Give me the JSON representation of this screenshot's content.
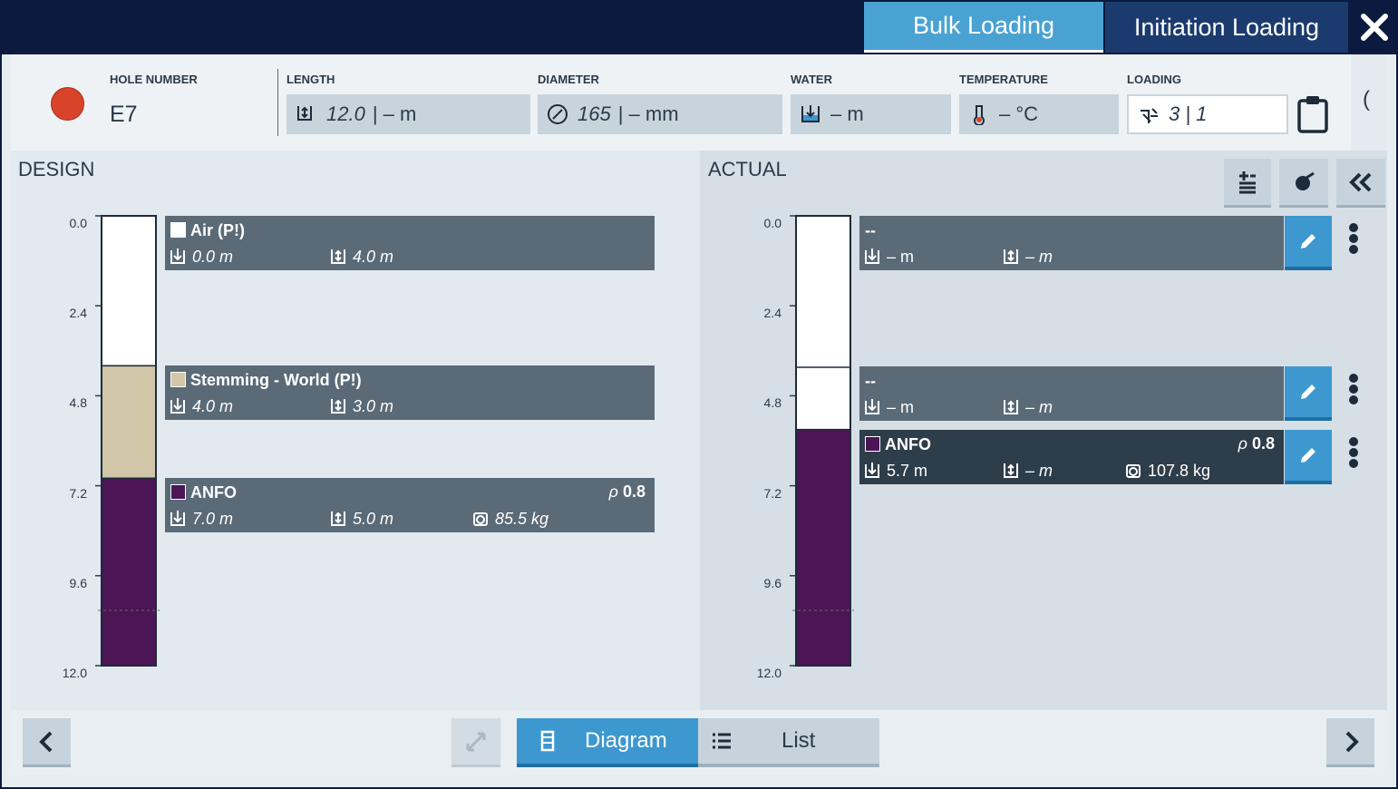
{
  "tabs": {
    "active": "Bulk Loading",
    "other": "Initiation Loading"
  },
  "header": {
    "hole_label": "HOLE NUMBER",
    "hole": "E7",
    "fields": [
      {
        "label": "LENGTH",
        "design": "12.0",
        "actual": "| – m"
      },
      {
        "label": "DIAMETER",
        "design": "165",
        "actual": "| – mm"
      },
      {
        "label": "WATER",
        "actual": "– m"
      },
      {
        "label": "TEMPERATURE",
        "actual": "– °C"
      },
      {
        "label": "LOADING",
        "actual": "3 | 1"
      }
    ],
    "collapse": "("
  },
  "design": {
    "title": "DESIGN",
    "scale": {
      "ticks": [
        {
          "value": 0,
          "label": "0.0"
        },
        {
          "value": 2.4,
          "label": "2.4"
        },
        {
          "value": 4.8,
          "label": "4.8"
        },
        {
          "value": 7.2,
          "label": "7.2"
        },
        {
          "value": 9.6,
          "label": "9.6"
        },
        {
          "value": 12,
          "label": "12.0"
        }
      ]
    },
    "decks": [
      {
        "name": "Air (P!)",
        "color": "#ffffff",
        "depth": {
          "value": 0,
          "label": "0.0 m"
        },
        "length": {
          "value": 4,
          "label": "4.0 m"
        }
      },
      {
        "name": "Stemming - World (P!)",
        "color": "#d1c6a8",
        "depth": {
          "value": 4,
          "label": "4.0 m"
        },
        "length": {
          "value": 3,
          "label": "3.0 m"
        }
      },
      {
        "name": "ANFO",
        "color": "#4b1556",
        "density_symbol": "ρ",
        "density": "0.8",
        "depth": {
          "value": 7,
          "label": "7.0 m"
        },
        "length": {
          "value": 5,
          "label": "5.0 m"
        },
        "mass": "85.5 kg"
      }
    ]
  },
  "actual": {
    "title": "ACTUAL",
    "scale": {
      "ticks": [
        {
          "value": 0,
          "label": "0.0"
        },
        {
          "value": 2.4,
          "label": "2.4"
        },
        {
          "value": 4.8,
          "label": "4.8"
        },
        {
          "value": 7.2,
          "label": "7.2"
        },
        {
          "value": 9.6,
          "label": "9.6"
        },
        {
          "value": 12,
          "label": "12.0"
        }
      ]
    },
    "decks": [
      {
        "name": "--",
        "depth": "– m",
        "length": "– m"
      },
      {
        "name": "--",
        "depth": "– m",
        "length": "– m"
      },
      {
        "name": "ANFO",
        "color": "#4b1556",
        "density_symbol": "ρ",
        "density": "0.8",
        "depth": {
          "value": 5.7,
          "label": "5.7 m"
        },
        "length": "– m",
        "mass": "107.8 kg"
      }
    ]
  },
  "footer": {
    "views": [
      "Diagram",
      "List"
    ]
  }
}
